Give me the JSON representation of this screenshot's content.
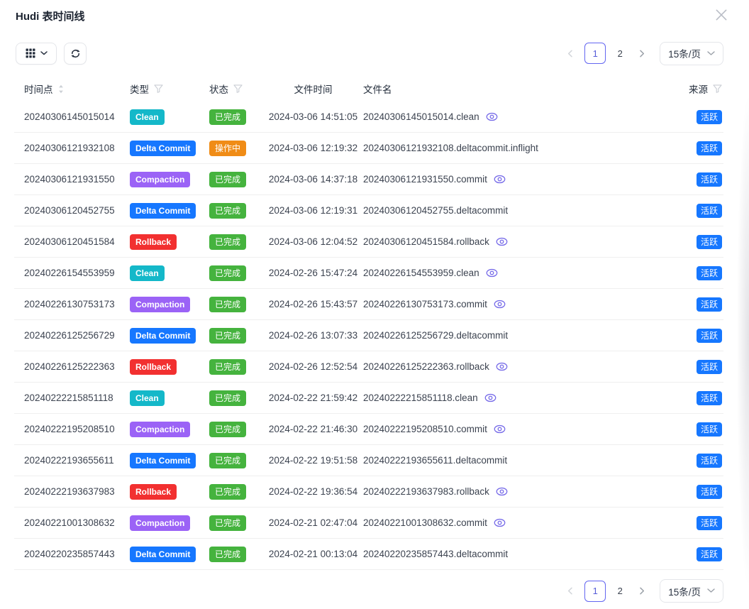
{
  "modal": {
    "title": "Hudi 表时间线"
  },
  "pagination": {
    "current_page": "1",
    "other_page": "2",
    "page_size": "15条/页"
  },
  "table": {
    "columns": [
      {
        "label": "时间点",
        "sortable": true
      },
      {
        "label": "类型",
        "filterable": true
      },
      {
        "label": "状态",
        "filterable": true
      },
      {
        "label": "文件时间"
      },
      {
        "label": "文件名"
      },
      {
        "label": "来源",
        "filterable": true
      }
    ],
    "rows": [
      {
        "timestamp": "20240306145015014",
        "type": "Clean",
        "type_color": "type_clean",
        "status": "已完成",
        "status_color": "status_done",
        "file_time": "2024-03-06 14:51:05",
        "file_name": "20240306145015014.clean",
        "viewable": true,
        "source": "活跃"
      },
      {
        "timestamp": "20240306121932108",
        "type": "Delta Commit",
        "type_color": "type_delta_commit",
        "status": "操作中",
        "status_color": "status_in_progress",
        "file_time": "2024-03-06 12:19:32",
        "file_name": "20240306121932108.deltacommit.inflight",
        "viewable": false,
        "source": "活跃"
      },
      {
        "timestamp": "20240306121931550",
        "type": "Compaction",
        "type_color": "type_compaction",
        "status": "已完成",
        "status_color": "status_done",
        "file_time": "2024-03-06 14:37:18",
        "file_name": "20240306121931550.commit",
        "viewable": true,
        "source": "活跃"
      },
      {
        "timestamp": "20240306120452755",
        "type": "Delta Commit",
        "type_color": "type_delta_commit",
        "status": "已完成",
        "status_color": "status_done",
        "file_time": "2024-03-06 12:19:31",
        "file_name": "20240306120452755.deltacommit",
        "viewable": false,
        "source": "活跃"
      },
      {
        "timestamp": "20240306120451584",
        "type": "Rollback",
        "type_color": "type_rollback",
        "status": "已完成",
        "status_color": "status_done",
        "file_time": "2024-03-06 12:04:52",
        "file_name": "20240306120451584.rollback",
        "viewable": true,
        "source": "活跃"
      },
      {
        "timestamp": "20240226154553959",
        "type": "Clean",
        "type_color": "type_clean",
        "status": "已完成",
        "status_color": "status_done",
        "file_time": "2024-02-26 15:47:24",
        "file_name": "20240226154553959.clean",
        "viewable": true,
        "source": "活跃"
      },
      {
        "timestamp": "20240226130753173",
        "type": "Compaction",
        "type_color": "type_compaction",
        "status": "已完成",
        "status_color": "status_done",
        "file_time": "2024-02-26 15:43:57",
        "file_name": "20240226130753173.commit",
        "viewable": true,
        "source": "活跃"
      },
      {
        "timestamp": "20240226125256729",
        "type": "Delta Commit",
        "type_color": "type_delta_commit",
        "status": "已完成",
        "status_color": "status_done",
        "file_time": "2024-02-26 13:07:33",
        "file_name": "20240226125256729.deltacommit",
        "viewable": false,
        "source": "活跃"
      },
      {
        "timestamp": "20240226125222363",
        "type": "Rollback",
        "type_color": "type_rollback",
        "status": "已完成",
        "status_color": "status_done",
        "file_time": "2024-02-26 12:52:54",
        "file_name": "20240226125222363.rollback",
        "viewable": true,
        "source": "活跃"
      },
      {
        "timestamp": "20240222215851118",
        "type": "Clean",
        "type_color": "type_clean",
        "status": "已完成",
        "status_color": "status_done",
        "file_time": "2024-02-22 21:59:42",
        "file_name": "20240222215851118.clean",
        "viewable": true,
        "source": "活跃"
      },
      {
        "timestamp": "20240222195208510",
        "type": "Compaction",
        "type_color": "type_compaction",
        "status": "已完成",
        "status_color": "status_done",
        "file_time": "2024-02-22 21:46:30",
        "file_name": "20240222195208510.commit",
        "viewable": true,
        "source": "活跃"
      },
      {
        "timestamp": "20240222193655611",
        "type": "Delta Commit",
        "type_color": "type_delta_commit",
        "status": "已完成",
        "status_color": "status_done",
        "file_time": "2024-02-22 19:51:58",
        "file_name": "20240222193655611.deltacommit",
        "viewable": false,
        "source": "活跃"
      },
      {
        "timestamp": "20240222193637983",
        "type": "Rollback",
        "type_color": "type_rollback",
        "status": "已完成",
        "status_color": "status_done",
        "file_time": "2024-02-22 19:36:54",
        "file_name": "20240222193637983.rollback",
        "viewable": true,
        "source": "活跃"
      },
      {
        "timestamp": "20240221001308632",
        "type": "Compaction",
        "type_color": "type_compaction",
        "status": "已完成",
        "status_color": "status_done",
        "file_time": "2024-02-21 02:47:04",
        "file_name": "20240221001308632.commit",
        "viewable": true,
        "source": "活跃"
      },
      {
        "timestamp": "20240220235857443",
        "type": "Delta Commit",
        "type_color": "type_delta_commit",
        "status": "已完成",
        "status_color": "status_done",
        "file_time": "2024-02-21 00:13:04",
        "file_name": "20240220235857443.deltacommit",
        "viewable": false,
        "source": "活跃"
      }
    ]
  },
  "colors": {
    "type_clean": "#14b8c9",
    "type_delta_commit": "#1677ff",
    "type_compaction": "#9b63f6",
    "type_rollback": "#f23030",
    "status_done": "#45b33e",
    "status_in_progress": "#f08c16",
    "source_active": "#1677ff",
    "accent": "#6366f1"
  }
}
